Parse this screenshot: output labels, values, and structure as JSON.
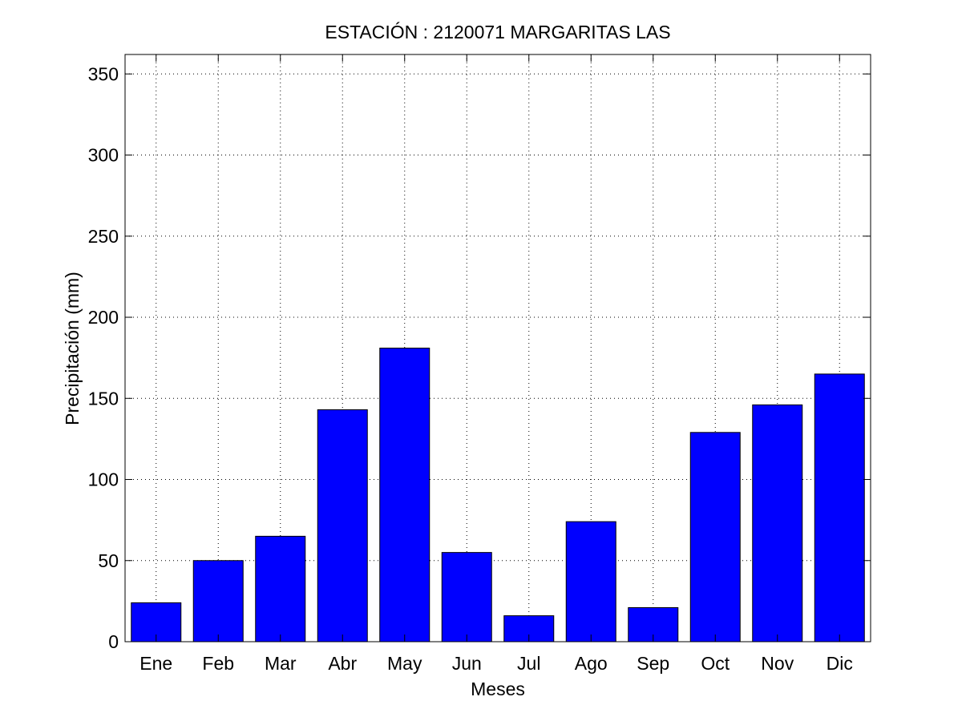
{
  "chart_data": {
    "type": "bar",
    "title": "ESTACIÓN :  2120071  MARGARITAS LAS",
    "xlabel": "Meses",
    "ylabel": "Precipitación (mm)",
    "categories": [
      "Ene",
      "Feb",
      "Mar",
      "Abr",
      "May",
      "Jun",
      "Jul",
      "Ago",
      "Sep",
      "Oct",
      "Nov",
      "Dic"
    ],
    "values": [
      24,
      50,
      65,
      143,
      181,
      55,
      16,
      74,
      21,
      129,
      146,
      165
    ],
    "ylim": [
      0,
      362
    ],
    "yticks": [
      0,
      50,
      100,
      150,
      200,
      250,
      300,
      350
    ],
    "grid": true,
    "legend": "none",
    "bar_color": "#0000ff",
    "background": "#ffffff"
  }
}
